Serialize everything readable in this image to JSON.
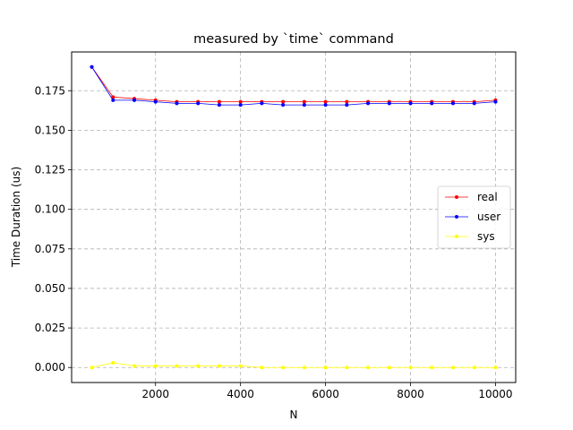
{
  "chart_data": {
    "type": "line",
    "title": "measured by `time` command",
    "xlabel": "N",
    "ylabel": "Time Duration (us)",
    "xlim": [
      25,
      10475
    ],
    "ylim": [
      -0.0095,
      0.1995
    ],
    "xticks": [
      2000,
      4000,
      6000,
      8000,
      10000
    ],
    "xtick_labels": [
      "2000",
      "4000",
      "6000",
      "8000",
      "10000"
    ],
    "yticks": [
      0.0,
      0.025,
      0.05,
      0.075,
      0.1,
      0.125,
      0.15,
      0.175
    ],
    "ytick_labels": [
      "0.000",
      "0.025",
      "0.050",
      "0.075",
      "0.100",
      "0.125",
      "0.150",
      "0.175"
    ],
    "grid": true,
    "legend_position": "center-right",
    "x": [
      500,
      1000,
      1500,
      2000,
      2500,
      3000,
      3500,
      4000,
      4500,
      5000,
      5500,
      6000,
      6500,
      7000,
      7500,
      8000,
      8500,
      9000,
      9500,
      10000
    ],
    "series": [
      {
        "name": "real",
        "color": "#ff0000",
        "values": [
          0.19,
          0.171,
          0.17,
          0.169,
          0.168,
          0.168,
          0.168,
          0.168,
          0.168,
          0.168,
          0.168,
          0.168,
          0.168,
          0.168,
          0.168,
          0.168,
          0.168,
          0.168,
          0.168,
          0.169
        ]
      },
      {
        "name": "user",
        "color": "#0000ff",
        "values": [
          0.19,
          0.169,
          0.169,
          0.168,
          0.167,
          0.167,
          0.166,
          0.166,
          0.167,
          0.166,
          0.166,
          0.166,
          0.166,
          0.167,
          0.167,
          0.167,
          0.167,
          0.167,
          0.167,
          0.168
        ]
      },
      {
        "name": "sys",
        "color": "#ffff00",
        "values": [
          0.0,
          0.003,
          0.001,
          0.001,
          0.001,
          0.001,
          0.001,
          0.001,
          0.0,
          0.0,
          0.0,
          0.0,
          0.0,
          0.0,
          0.0,
          0.0,
          0.0,
          0.0,
          0.0,
          0.0
        ]
      }
    ]
  }
}
